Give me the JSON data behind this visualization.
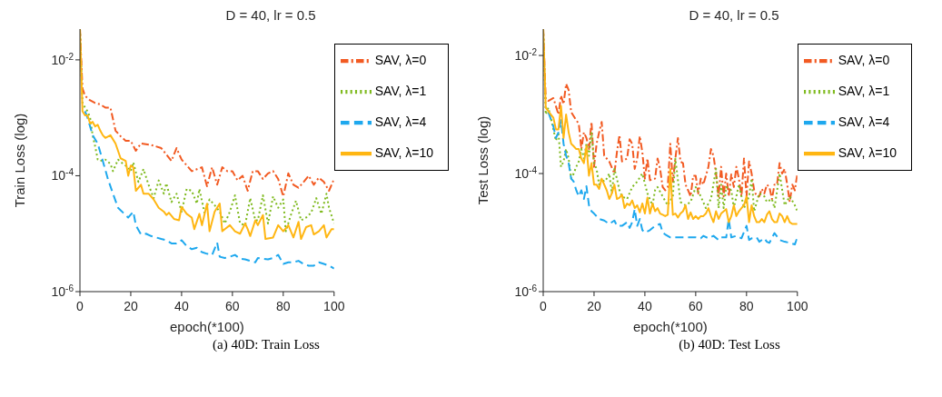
{
  "chart_data": [
    {
      "type": "line",
      "title": "D = 40, lr = 0.5",
      "xlabel": "epoch(*100)",
      "ylabel": "Train Loss (log)",
      "annotations": [
        "(a) 40D: Train Loss"
      ],
      "log": true,
      "legend": "top right",
      "xlim": [
        0,
        100
      ],
      "xticks": [
        0,
        20,
        40,
        60,
        80,
        100
      ],
      "ylim": [
        1e-06,
        0.034
      ],
      "yticks": [
        {
          "value": 1e-06,
          "label": "10$^{-6}$"
        },
        {
          "value": 0.0001,
          "label": "10$^{-4}$"
        },
        {
          "value": 0.01,
          "label": "10$^{-2}$"
        }
      ],
      "series": [
        {
          "name": "SAV, λ=0",
          "color": "#f25a22",
          "line_style": "dashdot",
          "x": [
            0,
            1,
            2,
            4,
            6,
            8,
            10,
            12,
            14,
            16,
            18,
            20,
            22,
            24,
            28,
            32,
            36,
            38,
            40,
            44,
            48,
            50,
            52,
            54,
            56,
            58,
            60,
            62,
            64,
            66,
            68,
            70,
            72,
            74,
            76,
            78,
            80,
            82,
            84,
            86,
            88,
            90,
            92,
            94,
            96,
            98,
            100
          ],
          "values": [
            0.034,
            0.0032,
            0.0024,
            0.002,
            0.0018,
            0.0017,
            0.0015,
            0.0015,
            0.0006,
            0.00048,
            0.0004,
            0.0004,
            0.00027,
            0.00036,
            0.00034,
            0.0003,
            0.00018,
            0.0003,
            0.00019,
            0.00012,
            0.00014,
            6.6e-05,
            0.00014,
            7e-05,
            0.00014,
            0.00012,
            0.00012,
            8.3e-05,
            0.0001,
            5.5e-05,
            0.00012,
            0.00012,
            8.8e-05,
            0.00011,
            0.00012,
            8.8e-05,
            4.4e-05,
            0.00011,
            7e-05,
            6.2e-05,
            7.8e-05,
            0.0001,
            7e-05,
            9.3e-05,
            7.8e-05,
            5.5e-05,
            8.8e-05
          ]
        },
        {
          "name": "SAV, λ=1",
          "color": "#7fba1f",
          "line_style": "dotted",
          "x": [
            0,
            1,
            2,
            3,
            4,
            5,
            6,
            7,
            8,
            10,
            12,
            13,
            15,
            17,
            19,
            20,
            21,
            23,
            25,
            27,
            29,
            31,
            33,
            34,
            36,
            38,
            40,
            42,
            44,
            46,
            47,
            49,
            51,
            53,
            55,
            57,
            59,
            61,
            63,
            65,
            67,
            69,
            70,
            72,
            74,
            76,
            78,
            80,
            81,
            83,
            85,
            87,
            89,
            91,
            93,
            95,
            97,
            98,
            100
          ],
          "values": [
            0.034,
            0.0018,
            0.0015,
            0.0013,
            0.001,
            0.0005,
            0.00032,
            0.00019,
            0.00018,
            0.00019,
            0.00016,
            0.00012,
            0.00019,
            0.00016,
            0.00014,
            0.00012,
            0.00017,
            7.8e-05,
            0.00013,
            7e-05,
            4.1e-05,
            8.3e-05,
            4.9e-05,
            7.4e-05,
            3.5e-05,
            4.9e-05,
            2.4e-05,
            5.9e-05,
            5.5e-05,
            3.3e-05,
            5.9e-05,
            2.3e-05,
            3.9e-05,
            3.1e-05,
            2.4e-05,
            1.5e-05,
            2.4e-05,
            4.6e-05,
            1.5e-05,
            1.4e-05,
            4.1e-05,
            1.7e-05,
            1.7e-05,
            4.6e-05,
            1.5e-05,
            4.4e-05,
            2.8e-05,
            3.9e-05,
            1.1e-05,
            2.1e-05,
            3.7e-05,
            1.7e-05,
            1.9e-05,
            2.3e-05,
            4.1e-05,
            2.2e-05,
            4.9e-05,
            2.8e-05,
            1.5e-05
          ]
        },
        {
          "name": "SAV, λ=4",
          "color": "#1ea8ee",
          "line_style": "dashed",
          "x": [
            2,
            3,
            5,
            7,
            9,
            11,
            13,
            15,
            17,
            19,
            21,
            22,
            24,
            26,
            28,
            30,
            32,
            34,
            36,
            38,
            40,
            42,
            44,
            46,
            48,
            50,
            52,
            54,
            55,
            57,
            59,
            61,
            63,
            65,
            67,
            69,
            70,
            74,
            76,
            78,
            80,
            82,
            84,
            86,
            88,
            90,
            92,
            94,
            96,
            98,
            100
          ],
          "values": [
            0.0013,
            0.001,
            0.0005,
            0.00036,
            0.00018,
            8.8e-05,
            4.9e-05,
            2.8e-05,
            2.3e-05,
            1.9e-05,
            2.4e-05,
            1.4e-05,
            9.7e-06,
            1e-05,
            9.1e-06,
            8.6e-06,
            8.1e-06,
            7.7e-06,
            6.8e-06,
            6.8e-06,
            7.7e-06,
            6.1e-06,
            5.4e-06,
            5.7e-06,
            4.8e-06,
            4.5e-06,
            4.3e-06,
            7e-06,
            4e-06,
            3.8e-06,
            4e-06,
            4.3e-06,
            3.7e-06,
            3.6e-06,
            3.4e-06,
            3.2e-06,
            3.8e-06,
            3.6e-06,
            3.8e-06,
            4.3e-06,
            3e-06,
            3.2e-06,
            3.2e-06,
            3.4e-06,
            3e-06,
            2.8e-06,
            2.8e-06,
            3.2e-06,
            3e-06,
            2.8e-06,
            2.5e-06
          ]
        },
        {
          "name": "SAV, λ=10",
          "color": "#ffb612",
          "line_style": "solid",
          "x": [
            0,
            1,
            2,
            3,
            4,
            5,
            6,
            7,
            8,
            9,
            10,
            12,
            14,
            16,
            18,
            19,
            20,
            21,
            22,
            24,
            25,
            27,
            29,
            31,
            33,
            34,
            35,
            37,
            39,
            40,
            42,
            44,
            45,
            47,
            48,
            50,
            51,
            53,
            55,
            56,
            57,
            59,
            61,
            63,
            65,
            66,
            67,
            69,
            70,
            72,
            73,
            76,
            78,
            80,
            82,
            84,
            86,
            87,
            89,
            91,
            92,
            94,
            96,
            97,
            99,
            100
          ],
          "values": [
            0.034,
            0.0013,
            0.0011,
            0.0011,
            0.0008,
            0.00085,
            0.00071,
            0.00076,
            0.0006,
            0.0005,
            0.00045,
            0.0005,
            0.00036,
            0.0002,
            0.00018,
            0.0001,
            0.00015,
            0.00014,
            5.5e-05,
            7e-05,
            4.9e-05,
            4.9e-05,
            3.9e-05,
            2.8e-05,
            2.4e-05,
            2.1e-05,
            2.3e-05,
            1.8e-05,
            1.7e-05,
            2.9e-05,
            2.2e-05,
            1.9e-05,
            1.2e-05,
            2.2e-05,
            1.4e-05,
            3.3e-05,
            1.1e-05,
            2.4e-05,
            3.3e-05,
            1.1e-05,
            1.2e-05,
            1.4e-05,
            1.1e-05,
            1e-05,
            1.5e-05,
            1.2e-05,
            9.1e-06,
            1.7e-05,
            1.4e-05,
            2.1e-05,
            8.1e-06,
            8.6e-06,
            1.4e-05,
            1.1e-05,
            1.4e-05,
            8.6e-06,
            1.6e-05,
            8.1e-06,
            1.3e-05,
            1.4e-05,
            9.7e-06,
            1.1e-05,
            1.4e-05,
            8.6e-06,
            1.2e-05,
            1.2e-05
          ]
        }
      ]
    },
    {
      "type": "line",
      "title": "D = 40, lr = 0.5",
      "xlabel": "epoch(*100)",
      "ylabel": "Test Loss (log)",
      "annotations": [
        "(b) 40D: Test Loss"
      ],
      "log": true,
      "legend": "top right",
      "xlim": [
        0,
        100
      ],
      "xticks": [
        0,
        20,
        40,
        60,
        80,
        100
      ],
      "ylim": [
        1e-06,
        0.028
      ],
      "yticks": [
        {
          "value": 1e-06,
          "label": "10$^{-6}$"
        },
        {
          "value": 0.0001,
          "label": "10$^{-4}$"
        },
        {
          "value": 0.01,
          "label": "10$^{-2}$"
        }
      ],
      "series": [
        {
          "name": "SAV, λ=0",
          "color": "#f25a22",
          "line_style": "dashdot",
          "x": [
            0,
            1,
            2,
            4,
            6,
            7,
            8,
            9,
            10,
            11,
            13,
            14,
            15,
            16,
            17,
            18,
            19,
            20,
            21,
            22,
            23,
            24,
            26,
            28,
            29,
            30,
            31,
            33,
            34,
            35,
            36,
            37,
            38,
            39,
            40,
            41,
            42,
            44,
            45,
            46,
            47,
            48,
            49,
            50,
            51,
            52,
            53,
            54,
            55,
            56,
            57,
            58,
            59,
            60,
            61,
            62,
            63,
            64,
            65,
            66,
            67,
            68,
            69,
            70,
            71,
            72,
            73,
            74,
            75,
            76,
            77,
            78,
            79,
            80,
            81,
            82,
            83,
            84,
            85,
            86,
            87,
            88,
            89,
            90,
            91,
            92,
            93,
            94,
            95,
            96,
            97,
            98,
            99,
            100
          ],
          "values": [
            0.028,
            0.0018,
            0.0017,
            0.0019,
            0.001,
            0.0021,
            0.0015,
            0.0033,
            0.0026,
            0.0011,
            0.0008,
            0.0007,
            0.00026,
            0.0005,
            0.0004,
            0.00026,
            0.00075,
            0.00013,
            0.00032,
            0.0005,
            0.00075,
            0.0002,
            0.00016,
            0.0001,
            0.00023,
            0.00045,
            0.00016,
            0.00018,
            0.00038,
            0.00032,
            0.00012,
            0.00018,
            0.00043,
            0.00023,
            8.2e-05,
            0.00018,
            7.7e-05,
            8.2e-05,
            0.00018,
            0.00012,
            5.9e-05,
            5.2e-05,
            5.9e-05,
            0.00032,
            7.3e-05,
            0.00018,
            0.0004,
            0.00016,
            0.00015,
            6.5e-05,
            5.2e-05,
            4.1e-05,
            9.2e-05,
            9.2e-05,
            4.6e-05,
            8.2e-05,
            6.5e-05,
            9.2e-05,
            0.00013,
            0.00026,
            0.0002,
            0.0001,
            4.1e-05,
            0.00013,
            4.1e-05,
            0.0001,
            4.1e-05,
            9.7e-05,
            5.9e-05,
            0.00013,
            8.2e-05,
            4.1e-05,
            0.00018,
            4.1e-05,
            0.00016,
            0.0001,
            5.2e-05,
            4.1e-05,
            4.1e-05,
            5.5e-05,
            4.6e-05,
            6.5e-05,
            5.9e-05,
            3.7e-05,
            6.5e-05,
            6.5e-05,
            0.00015,
            0.0001,
            0.00012,
            6.5e-05,
            3.3e-05,
            6.5e-05,
            5.2e-05,
            0.0001
          ]
        },
        {
          "name": "SAV, λ=1",
          "color": "#7fba1f",
          "line_style": "dotted",
          "x": [
            0,
            1,
            2,
            3,
            4,
            5,
            6,
            7,
            8,
            9,
            10,
            11,
            12,
            13,
            14,
            15,
            16,
            17,
            18,
            19,
            20,
            21,
            22,
            23,
            24,
            25,
            26,
            27,
            28,
            29,
            30,
            31,
            33,
            35,
            37,
            39,
            41,
            43,
            44,
            45,
            47,
            49,
            51,
            52,
            54,
            56,
            58,
            60,
            62,
            64,
            66,
            68,
            69,
            70,
            71,
            72,
            74,
            75,
            77,
            78,
            79,
            81,
            82,
            83,
            85,
            87,
            88,
            90,
            91,
            93,
            95,
            97,
            99,
            100
          ],
          "values": [
            0.028,
            0.001,
            0.0013,
            0.00088,
            0.00056,
            0.00036,
            0.0005,
            0.00013,
            0.00016,
            0.00026,
            0.00018,
            8.2e-05,
            0.0001,
            0.00013,
            0.00016,
            0.00026,
            0.00018,
            0.00032,
            0.0002,
            0.0005,
            0.00015,
            0.00012,
            6.5e-05,
            8.2e-05,
            7.3e-05,
            8.2e-05,
            0.0001,
            4.6e-05,
            0.00012,
            8.2e-05,
            5.2e-05,
            4.1e-05,
            3.7e-05,
            5.9e-05,
            7.3e-05,
            0.0001,
            4.6e-05,
            2.9e-05,
            5.2e-05,
            5.9e-05,
            4.1e-05,
            2.9e-05,
            4.1e-05,
            0.00018,
            3.3e-05,
            2.9e-05,
            3.3e-05,
            5.9e-05,
            4.1e-05,
            2.6e-05,
            3.7e-05,
            0.00012,
            2.6e-05,
            6.5e-05,
            2.6e-05,
            5.9e-05,
            5.2e-05,
            2.6e-05,
            6.5e-05,
            4.1e-05,
            2.6e-05,
            4.1e-05,
            8.2e-05,
            2.3e-05,
            4.6e-05,
            4.1e-05,
            3.3e-05,
            3.7e-05,
            2.6e-05,
            0.0001,
            2.9e-05,
            4.1e-05,
            2.9e-05,
            2.3e-05
          ]
        },
        {
          "name": "SAV, λ=4",
          "color": "#1ea8ee",
          "line_style": "dashed",
          "x": [
            2,
            4,
            5,
            6,
            7,
            8,
            9,
            10,
            11,
            12,
            13,
            14,
            15,
            16,
            17,
            18,
            19,
            20,
            22,
            24,
            26,
            28,
            29,
            31,
            33,
            34,
            35,
            36,
            37,
            38,
            39,
            40,
            42,
            44,
            46,
            47,
            48,
            50,
            52,
            54,
            56,
            58,
            60,
            62,
            63,
            65,
            67,
            69,
            70,
            72,
            73,
            74,
            76,
            78,
            80,
            81,
            82,
            84,
            85,
            87,
            88,
            89,
            91,
            93,
            95,
            97,
            99,
            100
          ],
          "values": [
            0.0011,
            0.00063,
            0.0004,
            0.0005,
            0.0008,
            0.00032,
            0.0002,
            0.00015,
            8.2e-05,
            7.3e-05,
            5.2e-05,
            4.1e-05,
            5.2e-05,
            3.7e-05,
            6.1e-05,
            2.9e-05,
            2.3e-05,
            2.1e-05,
            1.7e-05,
            1.6e-05,
            1.4e-05,
            1.6e-05,
            1.3e-05,
            1.3e-05,
            1.5e-05,
            1.2e-05,
            1.5e-05,
            2.5e-05,
            1.3e-05,
            1.7e-05,
            1.1e-05,
            1e-05,
            1.1e-05,
            1.3e-05,
            1.4e-05,
            1e-05,
            9.3e-06,
            8.3e-06,
            8.3e-06,
            8.3e-06,
            8.3e-06,
            8.3e-06,
            8.3e-06,
            8e-06,
            8.8e-06,
            8e-06,
            8.8e-06,
            7.5e-06,
            8.3e-06,
            8.3e-06,
            1.7e-05,
            8.3e-06,
            8.8e-06,
            8e-06,
            1.3e-05,
            7.5e-06,
            8e-06,
            8.3e-06,
            7e-06,
            8e-06,
            7e-06,
            6.7e-06,
            9.8e-06,
            7.5e-06,
            7e-06,
            6.7e-06,
            6.3e-06,
            8.3e-06
          ]
        },
        {
          "name": "SAV, λ=10",
          "color": "#ffb612",
          "line_style": "solid",
          "x": [
            0,
            1,
            3,
            4,
            5,
            6,
            7,
            8,
            9,
            10,
            11,
            12,
            13,
            14,
            15,
            16,
            17,
            18,
            19,
            20,
            21,
            22,
            23,
            24,
            25,
            26,
            27,
            28,
            29,
            30,
            31,
            32,
            33,
            34,
            35,
            36,
            37,
            38,
            39,
            40,
            41,
            42,
            43,
            44,
            45,
            46,
            47,
            48,
            49,
            50,
            51,
            52,
            53,
            54,
            55,
            56,
            57,
            58,
            59,
            60,
            61,
            62,
            63,
            64,
            65,
            66,
            67,
            68,
            69,
            70,
            72,
            73,
            74,
            75,
            76,
            77,
            78,
            79,
            80,
            81,
            82,
            83,
            84,
            85,
            86,
            87,
            88,
            89,
            90,
            91,
            92,
            93,
            94,
            95,
            96,
            97,
            98,
            99,
            100
          ],
          "values": [
            0.028,
            0.0013,
            0.001,
            0.00088,
            0.00056,
            0.00056,
            0.0014,
            0.0004,
            0.001,
            0.0005,
            0.00032,
            0.00029,
            0.00026,
            0.00026,
            0.00018,
            0.00015,
            0.00029,
            9.2e-05,
            0.00015,
            6.5e-05,
            6.5e-05,
            5.5e-05,
            8.2e-05,
            6.5e-05,
            5.2e-05,
            3.7e-05,
            4.6e-05,
            6.5e-05,
            3.7e-05,
            3.9e-05,
            4.4e-05,
            2.6e-05,
            3.1e-05,
            2.9e-05,
            3.5e-05,
            2.6e-05,
            2.9e-05,
            2.2e-05,
            3.1e-05,
            2.1e-05,
            3.9e-05,
            2.1e-05,
            3.1e-05,
            2.3e-05,
            2.6e-05,
            2.1e-05,
            2e-05,
            1.9e-05,
            2e-05,
            0.00012,
            2e-05,
            2.1e-05,
            1.8e-05,
            2.1e-05,
            2.3e-05,
            2.9e-05,
            1.7e-05,
            2.2e-05,
            1.7e-05,
            1.9e-05,
            1.7e-05,
            1.9e-05,
            1.9e-05,
            2.1e-05,
            2.6e-05,
            1.9e-05,
            1.5e-05,
            2.3e-05,
            1.7e-05,
            2.1e-05,
            2.5e-05,
            1.5e-05,
            1.9e-05,
            2.9e-05,
            1.9e-05,
            2.3e-05,
            2.6e-05,
            2.9e-05,
            4.1e-05,
            1.5e-05,
            2.9e-05,
            1.9e-05,
            1.5e-05,
            1.5e-05,
            1.7e-05,
            1.5e-05,
            2e-05,
            2.3e-05,
            1.7e-05,
            1.5e-05,
            1.5e-05,
            2.1e-05,
            1.9e-05,
            1.5e-05,
            1.9e-05,
            1.5e-05,
            1.4e-05,
            1.4e-05,
            1.4e-05
          ]
        }
      ]
    }
  ]
}
